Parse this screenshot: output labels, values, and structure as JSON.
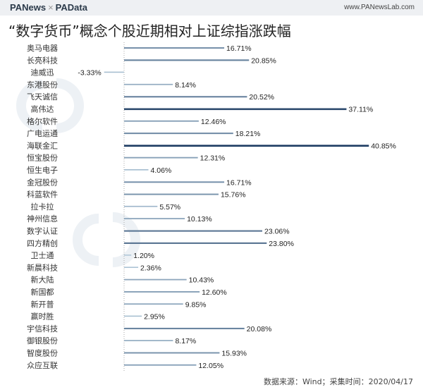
{
  "header": {
    "brand_left": "PANews",
    "separator": "×",
    "brand_right": "PAData",
    "site": "www.PANewsLab.com"
  },
  "watermarks": [
    "PAData",
    "PANews"
  ],
  "chart_data": {
    "type": "bar",
    "orientation": "horizontal",
    "title": "“数字货币”概念个股近期相对上证综指涨跌幅",
    "categories": [
      "奥马电器",
      "长亮科技",
      "迪威迅",
      "东港股份",
      "飞天诚信",
      "高伟达",
      "格尔软件",
      "广电运通",
      "海联金汇",
      "恒宝股份",
      "恒生电子",
      "金冠股份",
      "科蓝软件",
      "拉卡拉",
      "神州信息",
      "数字认证",
      "四方精创",
      "卫士通",
      "新晨科技",
      "新大陆",
      "新国都",
      "新开普",
      "赢时胜",
      "宇信科技",
      "御银股份",
      "智度股份",
      "众应互联"
    ],
    "values": [
      16.71,
      20.85,
      -3.33,
      8.14,
      20.52,
      37.11,
      12.46,
      18.21,
      40.85,
      12.31,
      4.06,
      16.71,
      15.76,
      5.57,
      10.13,
      23.06,
      23.8,
      1.2,
      2.36,
      10.43,
      12.6,
      9.85,
      2.95,
      20.08,
      8.17,
      15.93,
      12.05
    ],
    "value_suffix": "%",
    "colors": {
      "low": "#b3cadb",
      "high": "#1f3d63"
    },
    "grid": false
  },
  "footer": {
    "source": "数据来源：Wind；采集时间：2020/04/17"
  }
}
